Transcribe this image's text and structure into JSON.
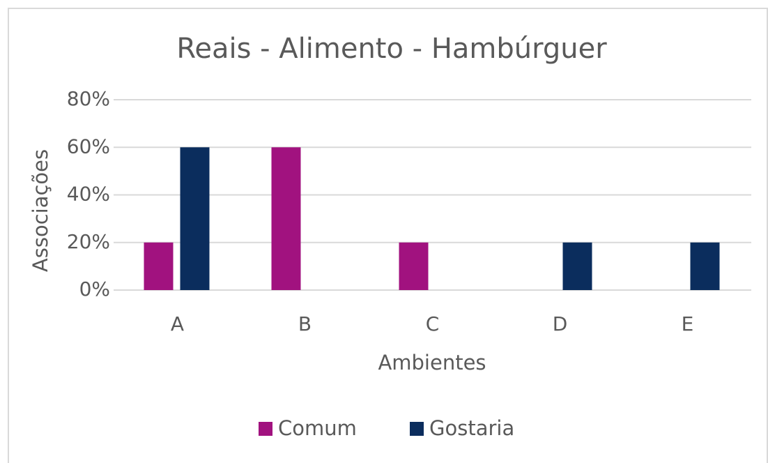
{
  "chart_data": {
    "type": "bar",
    "title": "Reais - Alimento - Hambúrguer",
    "x_label": "Ambientes",
    "y_label": "Associações",
    "categories": [
      "A",
      "B",
      "C",
      "D",
      "E"
    ],
    "series": [
      {
        "name": "Comum",
        "color": "#a1127f",
        "values": [
          20,
          60,
          20,
          0,
          0
        ]
      },
      {
        "name": "Gostaria",
        "color": "#0b2d5d",
        "values": [
          60,
          0,
          0,
          20,
          20
        ]
      }
    ],
    "ylim": [
      0,
      80
    ],
    "yticks": [
      {
        "value": 0,
        "label": "0%"
      },
      {
        "value": 20,
        "label": "20%"
      },
      {
        "value": 40,
        "label": "40%"
      },
      {
        "value": 60,
        "label": "60%"
      },
      {
        "value": 80,
        "label": "80%"
      }
    ],
    "grid": true,
    "legend": "bottom"
  }
}
